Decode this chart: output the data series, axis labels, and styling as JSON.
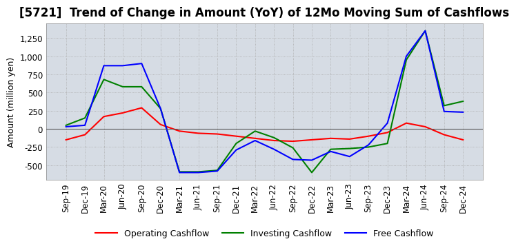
{
  "title": "[5721]  Trend of Change in Amount (YoY) of 12Mo Moving Sum of Cashflows",
  "ylabel": "Amount (million yen)",
  "x_labels": [
    "Sep-19",
    "Dec-19",
    "Mar-20",
    "Jun-20",
    "Sep-20",
    "Dec-20",
    "Mar-21",
    "Jun-21",
    "Sep-21",
    "Dec-21",
    "Mar-22",
    "Jun-22",
    "Sep-22",
    "Dec-22",
    "Mar-23",
    "Jun-23",
    "Sep-23",
    "Dec-23",
    "Mar-24",
    "Jun-24",
    "Sep-24",
    "Dec-24"
  ],
  "operating": [
    -150,
    -80,
    170,
    220,
    290,
    60,
    -30,
    -60,
    -70,
    -100,
    -130,
    -160,
    -170,
    -150,
    -130,
    -140,
    -100,
    -50,
    80,
    30,
    -80,
    -150
  ],
  "investing": [
    50,
    150,
    680,
    580,
    580,
    280,
    -590,
    -590,
    -570,
    -200,
    -30,
    -120,
    -260,
    -600,
    -280,
    -270,
    -250,
    -200,
    950,
    1350,
    320,
    380
  ],
  "free": [
    30,
    50,
    870,
    870,
    900,
    280,
    -600,
    -600,
    -580,
    -290,
    -160,
    -280,
    -420,
    -430,
    -310,
    -380,
    -220,
    80,
    1000,
    1350,
    240,
    230
  ],
  "ylim": [
    -700,
    1450
  ],
  "yticks": [
    -500,
    -250,
    0,
    250,
    500,
    750,
    1000,
    1250
  ],
  "operating_color": "#ff0000",
  "investing_color": "#008000",
  "free_color": "#0000ff",
  "bg_color": "#ffffff",
  "plot_bg_color": "#d6dce4",
  "grid_color": "#aaaaaa",
  "title_fontsize": 12,
  "label_fontsize": 9,
  "tick_fontsize": 8.5
}
